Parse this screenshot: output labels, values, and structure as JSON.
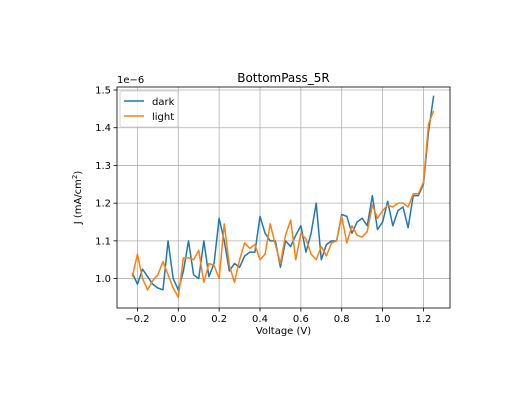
{
  "chart_data": {
    "type": "line",
    "title": "BottomPass_5R",
    "xlabel": "Voltage (V)",
    "ylabel_main": "J (mA/cm",
    "ylabel_sup": "2",
    "ylabel_end": ")",
    "offset_text": "1e−6",
    "xlim": [
      -0.3,
      1.33
    ],
    "ylim": [
      0.922,
      1.508
    ],
    "grid": true,
    "legend_position": "upper-left",
    "x_ticks": [
      {
        "value": -0.2,
        "label": "−0.2"
      },
      {
        "value": 0.0,
        "label": "0.0"
      },
      {
        "value": 0.2,
        "label": "0.2"
      },
      {
        "value": 0.4,
        "label": "0.4"
      },
      {
        "value": 0.6,
        "label": "0.6"
      },
      {
        "value": 0.8,
        "label": "0.8"
      },
      {
        "value": 1.0,
        "label": "1.0"
      },
      {
        "value": 1.2,
        "label": "1.2"
      }
    ],
    "y_ticks": [
      {
        "value": 1.0,
        "label": "1.0"
      },
      {
        "value": 1.1,
        "label": "1.1"
      },
      {
        "value": 1.2,
        "label": "1.2"
      },
      {
        "value": 1.3,
        "label": "1.3"
      },
      {
        "value": 1.4,
        "label": "1.4"
      },
      {
        "value": 1.5,
        "label": "1.5"
      }
    ],
    "series": [
      {
        "name": "dark",
        "color": "#1f77b4",
        "x": [
          -0.225,
          -0.2,
          -0.175,
          -0.15,
          -0.125,
          -0.1,
          -0.075,
          -0.05,
          -0.025,
          0.0,
          0.025,
          0.05,
          0.075,
          0.1,
          0.125,
          0.15,
          0.175,
          0.2,
          0.225,
          0.25,
          0.275,
          0.3,
          0.325,
          0.35,
          0.375,
          0.4,
          0.425,
          0.45,
          0.475,
          0.5,
          0.525,
          0.55,
          0.575,
          0.6,
          0.625,
          0.65,
          0.675,
          0.7,
          0.725,
          0.75,
          0.775,
          0.8,
          0.825,
          0.85,
          0.875,
          0.9,
          0.925,
          0.95,
          0.975,
          1.0,
          1.025,
          1.05,
          1.075,
          1.1,
          1.125,
          1.15,
          1.175,
          1.2,
          1.225,
          1.25
        ],
        "y": [
          1.015,
          0.985,
          1.025,
          1.005,
          0.985,
          0.975,
          0.97,
          1.1,
          1.0,
          0.97,
          1.02,
          1.1,
          1.01,
          1.0,
          1.1,
          1.005,
          1.04,
          1.16,
          1.1,
          1.02,
          1.04,
          1.03,
          1.06,
          1.07,
          1.07,
          1.165,
          1.12,
          1.1,
          1.1,
          1.03,
          1.1,
          1.085,
          1.115,
          1.14,
          1.07,
          1.12,
          1.2,
          1.05,
          1.09,
          1.1,
          1.1,
          1.17,
          1.165,
          1.12,
          1.15,
          1.16,
          1.14,
          1.22,
          1.13,
          1.15,
          1.205,
          1.14,
          1.18,
          1.19,
          1.135,
          1.22,
          1.22,
          1.25,
          1.39,
          1.485
        ]
      },
      {
        "name": "light",
        "color": "#ff7f0e",
        "x": [
          -0.225,
          -0.2,
          -0.175,
          -0.15,
          -0.125,
          -0.1,
          -0.075,
          -0.05,
          -0.025,
          0.0,
          0.025,
          0.05,
          0.075,
          0.1,
          0.125,
          0.15,
          0.175,
          0.2,
          0.225,
          0.25,
          0.275,
          0.3,
          0.325,
          0.35,
          0.375,
          0.4,
          0.425,
          0.45,
          0.475,
          0.5,
          0.525,
          0.55,
          0.575,
          0.6,
          0.625,
          0.65,
          0.675,
          0.7,
          0.725,
          0.75,
          0.775,
          0.8,
          0.825,
          0.85,
          0.875,
          0.9,
          0.925,
          0.95,
          0.975,
          1.0,
          1.025,
          1.05,
          1.075,
          1.1,
          1.125,
          1.15,
          1.175,
          1.2,
          1.225,
          1.25
        ],
        "y": [
          1.005,
          1.065,
          1.0,
          0.97,
          0.995,
          1.01,
          1.045,
          1.01,
          0.975,
          0.95,
          1.055,
          1.055,
          1.05,
          1.075,
          0.99,
          1.04,
          1.035,
          1.0,
          1.145,
          1.035,
          0.99,
          1.05,
          1.095,
          1.08,
          1.09,
          1.05,
          1.065,
          1.145,
          1.09,
          1.04,
          1.115,
          1.155,
          1.05,
          1.12,
          1.105,
          1.065,
          1.05,
          1.085,
          1.06,
          1.095,
          1.1,
          1.165,
          1.095,
          1.14,
          1.115,
          1.11,
          1.125,
          1.195,
          1.16,
          1.18,
          1.195,
          1.19,
          1.2,
          1.2,
          1.19,
          1.225,
          1.225,
          1.255,
          1.41,
          1.445
        ]
      }
    ]
  }
}
